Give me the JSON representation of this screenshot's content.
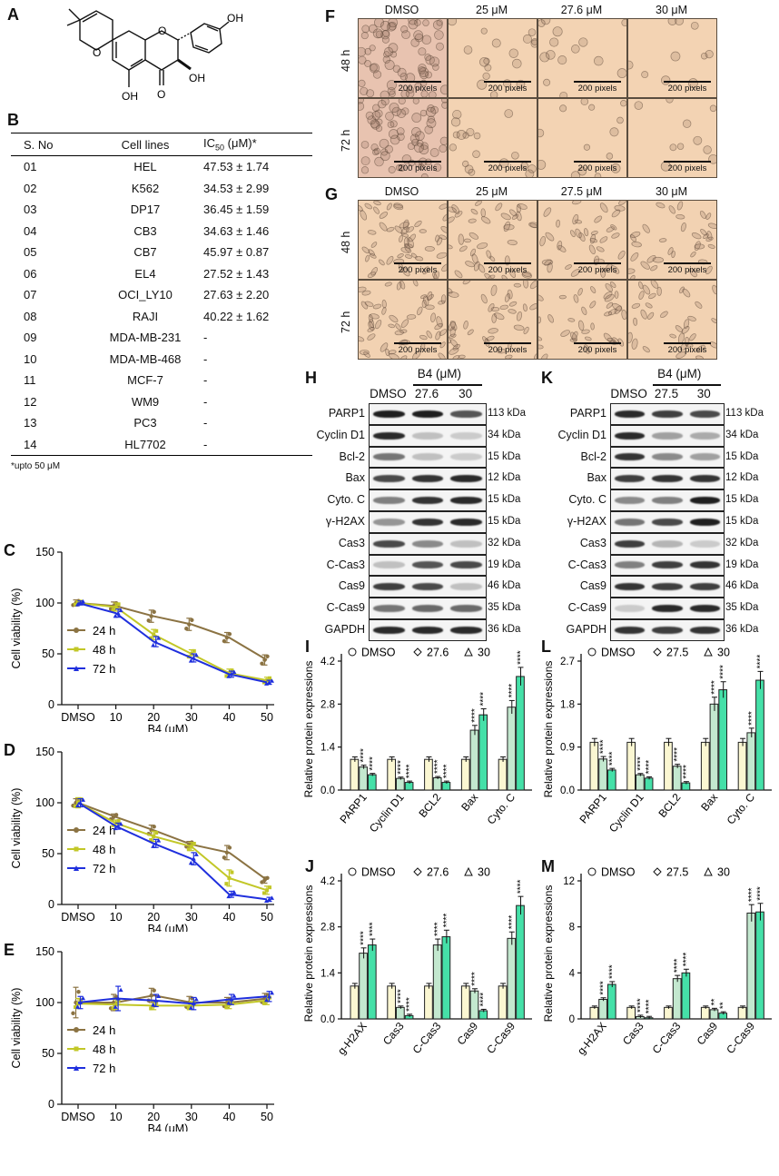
{
  "panels": {
    "A": "A",
    "B": "B",
    "C": "C",
    "D": "D",
    "E": "E",
    "F": "F",
    "G": "G",
    "H": "H",
    "I": "I",
    "J": "J",
    "K": "K",
    "L": "L",
    "M": "M"
  },
  "structure": {
    "oh1": "OH",
    "oh2": "OH",
    "oh3": "OH",
    "o1": "O",
    "o2": "O",
    "o3": "O"
  },
  "ic50_table": {
    "headers": [
      "S. No",
      "Cell lines",
      "IC50 (μM)*"
    ],
    "header_ic": "IC",
    "header_sub": "50",
    "header_rest": " (μM)*",
    "rows": [
      [
        "01",
        "HEL",
        "47.53 ± 1.74"
      ],
      [
        "02",
        "K562",
        "34.53 ± 2.99"
      ],
      [
        "03",
        "DP17",
        "36.45 ± 1.59"
      ],
      [
        "04",
        "CB3",
        "34.63 ± 1.46"
      ],
      [
        "05",
        "CB7",
        "45.97 ± 0.87"
      ],
      [
        "06",
        "EL4",
        "27.52 ± 1.43"
      ],
      [
        "07",
        "OCI_LY10",
        "27.63 ± 2.20"
      ],
      [
        "08",
        "RAJI",
        "40.22 ± 1.62"
      ],
      [
        "09",
        "MDA-MB-231",
        "-"
      ],
      [
        "10",
        "MDA-MB-468",
        "-"
      ],
      [
        "11",
        "MCF-7",
        "-"
      ],
      [
        "12",
        "WM9",
        "-"
      ],
      [
        "13",
        "PC3",
        "-"
      ],
      [
        "14",
        "HL7702",
        "-"
      ]
    ],
    "footnote": "*upto 50 μM"
  },
  "micro_F": {
    "cols": [
      "DMSO",
      "25 μM",
      "27.6 μM",
      "30 μM"
    ],
    "rows": [
      "48 h",
      "72 h"
    ],
    "scale": "200 pixels"
  },
  "micro_G": {
    "cols": [
      "DMSO",
      "25 μM",
      "27.5 μM",
      "30 μM"
    ],
    "rows": [
      "48 h",
      "72 h"
    ],
    "scale": "200 pixels"
  },
  "western_H": {
    "title": "B4 (μM)",
    "lanes": [
      "DMSO",
      "27.6",
      "30"
    ],
    "proteins": [
      "PARP1",
      "Cyclin D1",
      "Bcl-2",
      "Bax",
      "Cyto. C",
      "γ-H2AX",
      "Cas3",
      "C-Cas3",
      "Cas9",
      "C-Cas9",
      "GAPDH"
    ],
    "kda": [
      "113 kDa",
      "34 kDa",
      "15 kDa",
      "12 kDa",
      "15 kDa",
      "15 kDa",
      "32 kDa",
      "19 kDa",
      "46 kDa",
      "35 kDa",
      "36 kDa"
    ],
    "intensity": [
      [
        0.95,
        0.95,
        0.7
      ],
      [
        0.9,
        0.2,
        0.15
      ],
      [
        0.55,
        0.2,
        0.15
      ],
      [
        0.75,
        0.85,
        0.9
      ],
      [
        0.5,
        0.85,
        0.9
      ],
      [
        0.4,
        0.85,
        0.9
      ],
      [
        0.75,
        0.45,
        0.2
      ],
      [
        0.2,
        0.7,
        0.75
      ],
      [
        0.8,
        0.75,
        0.2
      ],
      [
        0.55,
        0.6,
        0.6
      ],
      [
        0.9,
        0.9,
        0.9
      ]
    ]
  },
  "western_K": {
    "title": "B4 (μM)",
    "lanes": [
      "DMSO",
      "27.5",
      "30"
    ],
    "proteins": [
      "PARP1",
      "Cyclin D1",
      "Bcl-2",
      "Bax",
      "Cyto. C",
      "γ-H2AX",
      "Cas3",
      "C-Cas3",
      "Cas9",
      "C-Cas9",
      "GAPDH"
    ],
    "kda": [
      "113 kDa",
      "34 kDa",
      "15 kDa",
      "12 kDa",
      "15 kDa",
      "15 kDa",
      "32 kDa",
      "19 kDa",
      "46 kDa",
      "35 kDa",
      "36 kDa"
    ],
    "intensity": [
      [
        0.9,
        0.8,
        0.75
      ],
      [
        0.9,
        0.35,
        0.3
      ],
      [
        0.85,
        0.45,
        0.35
      ],
      [
        0.8,
        0.85,
        0.85
      ],
      [
        0.45,
        0.5,
        0.95
      ],
      [
        0.55,
        0.75,
        0.95
      ],
      [
        0.8,
        0.25,
        0.15
      ],
      [
        0.5,
        0.8,
        0.85
      ],
      [
        0.85,
        0.8,
        0.8
      ],
      [
        0.15,
        0.9,
        0.9
      ],
      [
        0.85,
        0.8,
        0.85
      ]
    ]
  },
  "chart_data": [
    {
      "id": "C",
      "type": "line",
      "title": "",
      "xlabel": "B4 (μM)",
      "ylabel": "Cell viability (%)",
      "categories": [
        "DMSO",
        "10",
        "20",
        "30",
        "40",
        "50"
      ],
      "ylim": [
        0,
        150
      ],
      "yticks": [
        0,
        50,
        100,
        150
      ],
      "series": [
        {
          "name": "24 h",
          "color": "#8b7343",
          "values": [
            100,
            97,
            87,
            79,
            66,
            44
          ],
          "err": [
            3,
            4,
            6,
            6,
            5,
            5
          ]
        },
        {
          "name": "48 h",
          "color": "#c2c727",
          "values": [
            100,
            96,
            69,
            50,
            31,
            24
          ],
          "err": [
            2,
            4,
            5,
            4,
            4,
            3
          ]
        },
        {
          "name": "72 h",
          "color": "#1f2fdd",
          "values": [
            100,
            90,
            62,
            46,
            30,
            22
          ],
          "err": [
            2,
            4,
            5,
            4,
            3,
            2
          ]
        }
      ]
    },
    {
      "id": "D",
      "type": "line",
      "title": "",
      "xlabel": "B4 (μM)",
      "ylabel": "Cell viability (%)",
      "categories": [
        "DMSO",
        "10",
        "20",
        "30",
        "40",
        "50"
      ],
      "ylim": [
        0,
        150
      ],
      "yticks": [
        0,
        50,
        100,
        150
      ],
      "series": [
        {
          "name": "24 h",
          "color": "#8b7343",
          "values": [
            100,
            86,
            73,
            59,
            51,
            24
          ],
          "err": [
            4,
            3,
            5,
            3,
            7,
            3
          ]
        },
        {
          "name": "48 h",
          "color": "#c2c727",
          "values": [
            100,
            80,
            67,
            57,
            26,
            14
          ],
          "err": [
            5,
            3,
            5,
            4,
            8,
            4
          ]
        },
        {
          "name": "72 h",
          "color": "#1f2fdd",
          "values": [
            100,
            77,
            60,
            45,
            10,
            5
          ],
          "err": [
            4,
            3,
            4,
            6,
            3,
            2
          ]
        }
      ]
    },
    {
      "id": "E",
      "type": "line",
      "title": "",
      "xlabel": "B4 (μM)",
      "ylabel": "Cell viability (%)",
      "categories": [
        "DMSO",
        "10",
        "20",
        "30",
        "40",
        "50"
      ],
      "ylim": [
        0,
        150
      ],
      "yticks": [
        0,
        50,
        100,
        150
      ],
      "series": [
        {
          "name": "24 h",
          "color": "#8b7343",
          "values": [
            100,
            100,
            107,
            100,
            100,
            104
          ],
          "err": [
            15,
            8,
            7,
            6,
            5,
            5
          ]
        },
        {
          "name": "48 h",
          "color": "#c2c727",
          "values": [
            99,
            98,
            97,
            97,
            98,
            102
          ],
          "err": [
            5,
            5,
            4,
            4,
            4,
            4
          ]
        },
        {
          "name": "72 h",
          "color": "#1f2fdd",
          "values": [
            100,
            104,
            102,
            99,
            103,
            106
          ],
          "err": [
            6,
            12,
            6,
            6,
            5,
            5
          ]
        }
      ]
    },
    {
      "id": "I",
      "type": "bar",
      "title": "",
      "xlabel": "",
      "ylabel": "Relative protein expressions",
      "categories": [
        "PARP1",
        "Cyclin D1",
        "BCL2",
        "Bax",
        "Cyto. C"
      ],
      "ylim": [
        0,
        4.2
      ],
      "yticks": [
        "0.0",
        "1.4",
        "2.8",
        "4.2"
      ],
      "legend": [
        "DMSO",
        "27.6",
        "30"
      ],
      "series": [
        {
          "name": "DMSO",
          "values": [
            1.0,
            1.0,
            1.0,
            1.0,
            1.0
          ]
        },
        {
          "name": "27.6",
          "values": [
            0.75,
            0.38,
            0.4,
            1.95,
            2.7
          ]
        },
        {
          "name": "30",
          "values": [
            0.5,
            0.25,
            0.25,
            2.45,
            3.7
          ]
        }
      ],
      "sig": [
        "****",
        "****",
        "****",
        "****",
        "****"
      ]
    },
    {
      "id": "J",
      "type": "bar",
      "title": "",
      "xlabel": "",
      "ylabel": "Relative protein expressions",
      "categories": [
        "g-H2AX",
        "Cas3",
        "C-Cas3",
        "Cas9",
        "C-Cas9"
      ],
      "ylim": [
        0,
        4.2
      ],
      "yticks": [
        "0.0",
        "1.4",
        "2.8",
        "4.2"
      ],
      "legend": [
        "DMSO",
        "27.6",
        "30"
      ],
      "series": [
        {
          "name": "DMSO",
          "values": [
            1.0,
            1.0,
            1.0,
            1.0,
            1.0
          ]
        },
        {
          "name": "27.6",
          "values": [
            2.0,
            0.35,
            2.25,
            0.85,
            2.45
          ]
        },
        {
          "name": "30",
          "values": [
            2.25,
            0.1,
            2.5,
            0.25,
            3.45
          ]
        }
      ],
      "sig": [
        "****",
        "****",
        "****",
        "****",
        "****"
      ]
    },
    {
      "id": "L",
      "type": "bar",
      "title": "",
      "xlabel": "",
      "ylabel": "Relative protein expressions",
      "categories": [
        "PARP1",
        "Cyclin D1",
        "BCL2",
        "Bax",
        "Cyto. C"
      ],
      "ylim": [
        0,
        2.7
      ],
      "yticks": [
        "0.0",
        "0.9",
        "1.8",
        "2.7"
      ],
      "legend": [
        "DMSO",
        "27.5",
        "30"
      ],
      "series": [
        {
          "name": "DMSO",
          "values": [
            1.0,
            1.0,
            1.0,
            1.0,
            1.0
          ]
        },
        {
          "name": "27.5",
          "values": [
            0.65,
            0.32,
            0.5,
            1.8,
            1.2
          ]
        },
        {
          "name": "30",
          "values": [
            0.42,
            0.25,
            0.15,
            2.1,
            2.3
          ]
        }
      ],
      "sig": [
        "****",
        "****",
        "****",
        "****",
        "****"
      ]
    },
    {
      "id": "M",
      "type": "bar",
      "title": "",
      "xlabel": "",
      "ylabel": "Relative protein expressions",
      "categories": [
        "g-H2AX",
        "Cas3",
        "C-Cas3",
        "Cas9",
        "C-Cas9"
      ],
      "ylim": [
        0,
        12
      ],
      "yticks": [
        "0",
        "4",
        "8",
        "12"
      ],
      "legend": [
        "DMSO",
        "27.5",
        "30"
      ],
      "series": [
        {
          "name": "DMSO",
          "values": [
            1.0,
            1.0,
            1.0,
            1.0,
            1.0
          ]
        },
        {
          "name": "27.5",
          "values": [
            1.7,
            0.2,
            3.5,
            0.8,
            9.2
          ]
        },
        {
          "name": "30",
          "values": [
            3.0,
            0.1,
            4.0,
            0.5,
            9.3
          ]
        }
      ],
      "sig": [
        "****",
        "****",
        "****",
        "**",
        "****"
      ]
    }
  ]
}
